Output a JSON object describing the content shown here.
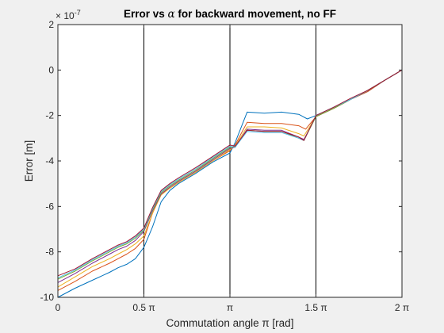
{
  "chart_data": {
    "type": "line",
    "title_parts": {
      "before": "Error vs ",
      "symbol": "α",
      "after": " for backward movement, no FF"
    },
    "xlabel": "Commutation angle π [rad]",
    "ylabel": "Error [m]",
    "y_exponent_label": "× 10",
    "y_exponent_power": "-7",
    "xlim": [
      0,
      2
    ],
    "ylim": [
      -10,
      2
    ],
    "x_unit": "π",
    "y_unit_scale": "1e-7",
    "x_ticks": [
      {
        "value": 0,
        "label": "0"
      },
      {
        "value": 0.5,
        "label": "0.5 π"
      },
      {
        "value": 1,
        "label": "π"
      },
      {
        "value": 1.5,
        "label": "1.5 π"
      },
      {
        "value": 2,
        "label": "2 π"
      }
    ],
    "y_ticks": [
      {
        "value": 2,
        "label": "2"
      },
      {
        "value": 0,
        "label": "0"
      },
      {
        "value": -2,
        "label": "-2"
      },
      {
        "value": -4,
        "label": "-4"
      },
      {
        "value": -6,
        "label": "-6"
      },
      {
        "value": -8,
        "label": "-8"
      },
      {
        "value": -10,
        "label": "-10"
      }
    ],
    "vertical_lines": [
      0.5,
      1,
      1.5
    ],
    "grid": false,
    "legend": "none",
    "series_colors": [
      "#0072bd",
      "#d95319",
      "#edb120",
      "#7e2f8e",
      "#77ac30",
      "#4dbeee",
      "#a2142f"
    ],
    "series": [
      {
        "x": [
          0,
          0.1,
          0.2,
          0.3,
          0.35,
          0.4,
          0.45,
          0.5,
          0.55,
          0.6,
          0.65,
          0.7,
          0.8,
          0.9,
          1.0,
          1.03,
          1.1,
          1.2,
          1.3,
          1.4,
          1.45,
          1.5,
          1.6,
          1.7,
          1.8,
          1.9,
          2.0
        ],
        "values": [
          -10.0,
          -9.6,
          -9.25,
          -8.9,
          -8.7,
          -8.55,
          -8.3,
          -7.8,
          -6.9,
          -5.8,
          -5.3,
          -5.0,
          -4.55,
          -4.05,
          -3.65,
          -3.2,
          -1.85,
          -1.9,
          -1.85,
          -1.95,
          -2.15,
          -2.0,
          -1.65,
          -1.3,
          -0.95,
          -0.45,
          0.0
        ]
      },
      {
        "x": [
          0,
          0.1,
          0.2,
          0.3,
          0.35,
          0.4,
          0.45,
          0.5,
          0.55,
          0.6,
          0.65,
          0.7,
          0.8,
          0.9,
          1.0,
          1.03,
          1.1,
          1.2,
          1.3,
          1.4,
          1.44,
          1.5,
          1.6,
          1.7,
          1.8,
          1.9,
          2.0
        ],
        "values": [
          -9.7,
          -9.3,
          -8.85,
          -8.5,
          -8.3,
          -8.1,
          -7.85,
          -7.45,
          -6.3,
          -5.45,
          -5.2,
          -4.95,
          -4.5,
          -4.0,
          -3.55,
          -3.3,
          -2.3,
          -2.35,
          -2.35,
          -2.45,
          -2.6,
          -2.05,
          -1.7,
          -1.3,
          -0.95,
          -0.45,
          0.0
        ]
      },
      {
        "x": [
          0,
          0.1,
          0.2,
          0.3,
          0.35,
          0.4,
          0.45,
          0.5,
          0.55,
          0.6,
          0.65,
          0.7,
          0.8,
          0.9,
          1.0,
          1.03,
          1.1,
          1.2,
          1.3,
          1.4,
          1.43,
          1.5,
          1.6,
          1.7,
          1.8,
          1.9,
          2.0
        ],
        "values": [
          -9.55,
          -9.1,
          -8.65,
          -8.3,
          -8.1,
          -7.9,
          -7.65,
          -7.3,
          -6.3,
          -5.5,
          -5.2,
          -4.95,
          -4.5,
          -4.0,
          -3.5,
          -3.35,
          -2.5,
          -2.5,
          -2.55,
          -2.8,
          -2.9,
          -2.05,
          -1.7,
          -1.3,
          -0.9,
          -0.45,
          0.0
        ]
      },
      {
        "x": [
          0,
          0.1,
          0.2,
          0.3,
          0.35,
          0.4,
          0.45,
          0.5,
          0.55,
          0.6,
          0.65,
          0.7,
          0.8,
          0.9,
          1.0,
          1.03,
          1.1,
          1.2,
          1.3,
          1.4,
          1.43,
          1.5,
          1.6,
          1.7,
          1.8,
          1.9,
          2.0
        ],
        "values": [
          -9.35,
          -8.95,
          -8.5,
          -8.1,
          -7.9,
          -7.75,
          -7.5,
          -7.1,
          -6.2,
          -5.45,
          -5.15,
          -4.9,
          -4.45,
          -3.95,
          -3.45,
          -3.4,
          -2.6,
          -2.65,
          -2.65,
          -2.95,
          -3.05,
          -2.05,
          -1.7,
          -1.3,
          -0.9,
          -0.45,
          0.0
        ]
      },
      {
        "x": [
          0,
          0.1,
          0.2,
          0.3,
          0.35,
          0.4,
          0.45,
          0.5,
          0.55,
          0.6,
          0.65,
          0.7,
          0.8,
          0.9,
          1.0,
          1.03,
          1.1,
          1.2,
          1.3,
          1.4,
          1.43,
          1.5,
          1.6,
          1.7,
          1.8,
          1.9,
          2.0
        ],
        "values": [
          -9.2,
          -8.85,
          -8.4,
          -8.0,
          -7.8,
          -7.65,
          -7.4,
          -7.05,
          -6.15,
          -5.4,
          -5.1,
          -4.85,
          -4.4,
          -3.9,
          -3.4,
          -3.4,
          -2.65,
          -2.7,
          -2.7,
          -3.0,
          -3.1,
          -2.05,
          -1.7,
          -1.3,
          -0.9,
          -0.45,
          0.0
        ]
      },
      {
        "x": [
          0,
          0.1,
          0.2,
          0.3,
          0.35,
          0.4,
          0.45,
          0.5,
          0.55,
          0.6,
          0.65,
          0.7,
          0.8,
          0.9,
          1.0,
          1.03,
          1.1,
          1.2,
          1.3,
          1.4,
          1.43,
          1.5,
          1.6,
          1.7,
          1.8,
          1.9,
          2.0
        ],
        "values": [
          -9.15,
          -8.8,
          -8.35,
          -7.95,
          -7.75,
          -7.6,
          -7.35,
          -7.0,
          -6.1,
          -5.35,
          -5.05,
          -4.8,
          -4.35,
          -3.85,
          -3.35,
          -3.4,
          -2.7,
          -2.75,
          -2.75,
          -3.0,
          -3.1,
          -2.0,
          -1.65,
          -1.3,
          -0.9,
          -0.45,
          0.0
        ]
      },
      {
        "x": [
          0,
          0.1,
          0.2,
          0.3,
          0.35,
          0.4,
          0.45,
          0.5,
          0.55,
          0.6,
          0.65,
          0.7,
          0.8,
          0.9,
          1.0,
          1.03,
          1.1,
          1.2,
          1.3,
          1.4,
          1.43,
          1.5,
          1.6,
          1.7,
          1.8,
          1.9,
          2.0
        ],
        "values": [
          -9.05,
          -8.75,
          -8.3,
          -7.9,
          -7.7,
          -7.55,
          -7.3,
          -6.95,
          -6.05,
          -5.3,
          -5.0,
          -4.75,
          -4.3,
          -3.8,
          -3.3,
          -3.35,
          -2.65,
          -2.7,
          -2.7,
          -2.95,
          -3.1,
          -2.0,
          -1.65,
          -1.25,
          -0.9,
          -0.45,
          0.0
        ]
      }
    ]
  }
}
